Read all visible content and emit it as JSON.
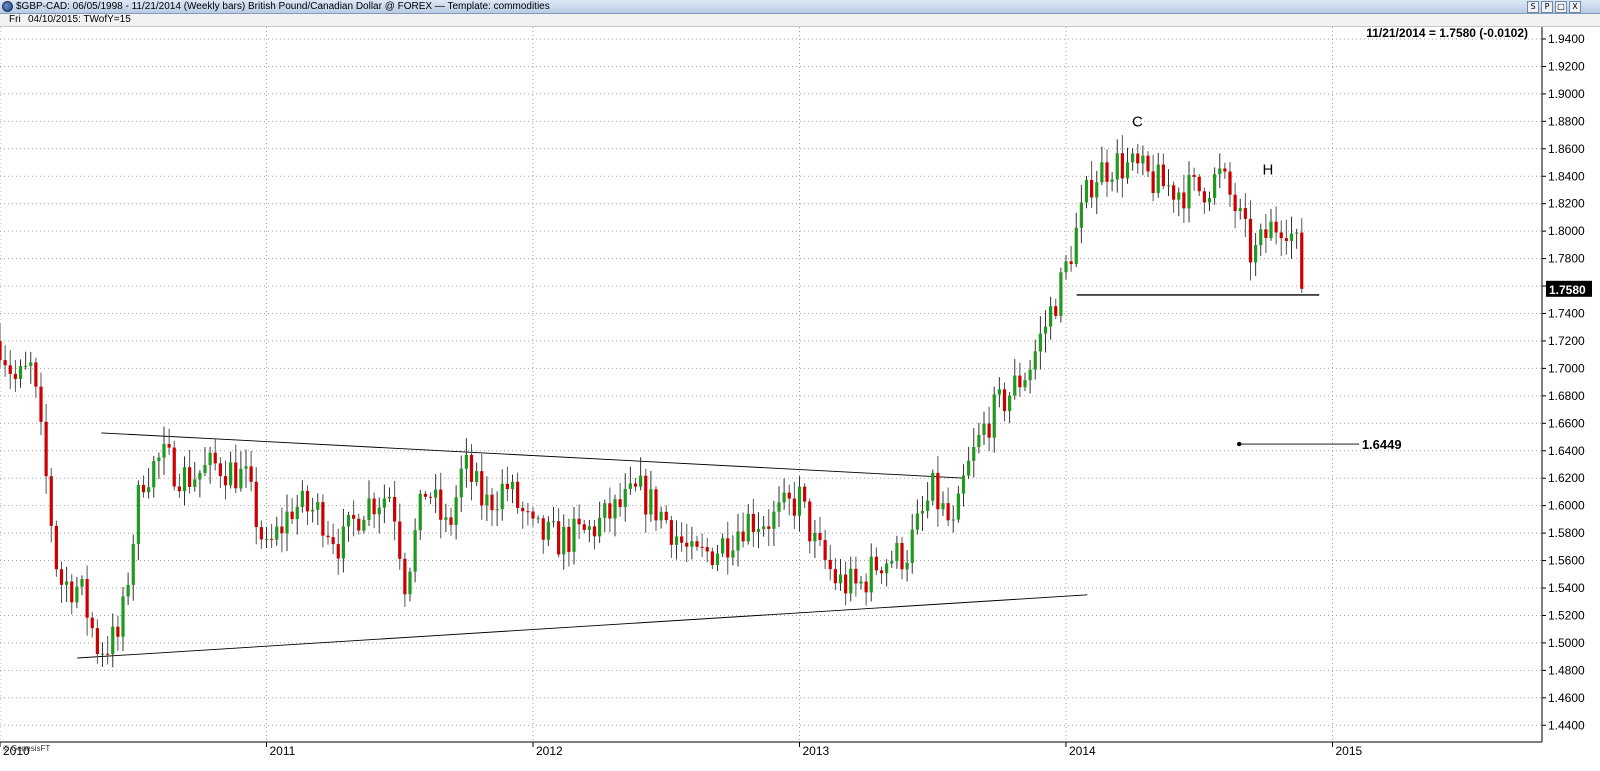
{
  "window": {
    "title": "$GBP-CAD:  06/05/1998 - 11/21/2014  (Weekly bars)   British Pound/Canadian Dollar @ FOREX  —  Template: commodities",
    "buttons": [
      "S",
      "P",
      "□",
      "X"
    ]
  },
  "info": {
    "day": "Fri",
    "date_line": "04/10/2015:   TWofY=15"
  },
  "footer": {
    "credit": "© GenesisFT"
  },
  "colors": {
    "up": "#1f9a1f",
    "down": "#cc0000",
    "wick": "#000000",
    "grid": "#a0a0a0",
    "text": "#000000"
  },
  "chart_data": {
    "type": "candlestick",
    "timeframe": "Weekly bars",
    "symbol": "$GBP-CAD",
    "readout": "11/21/2014 = 1.7580 (-0.0102)",
    "last_price": "1.7580",
    "ylim": [
      1.43,
      1.95
    ],
    "y_ticks": [
      "1.9400",
      "1.9200",
      "1.9000",
      "1.8800",
      "1.8600",
      "1.8400",
      "1.8200",
      "1.8000",
      "1.7800",
      "1.7600",
      "1.7400",
      "1.7200",
      "1.7000",
      "1.6800",
      "1.6600",
      "1.6400",
      "1.6200",
      "1.6000",
      "1.5800",
      "1.5600",
      "1.5400",
      "1.5200",
      "1.5000",
      "1.4800",
      "1.4600",
      "1.4400"
    ],
    "x_range": [
      2010.0,
      2015.8
    ],
    "x_ticks": [
      "2010",
      "2011",
      "2012",
      "2013",
      "2014",
      "2015"
    ],
    "trendlines": [
      {
        "name": "upper",
        "x1": 2010.38,
        "y1": 1.653,
        "x2": 2013.62,
        "y2": 1.62
      },
      {
        "name": "lower",
        "x1": 2010.29,
        "y1": 1.489,
        "x2": 2014.08,
        "y2": 1.535
      },
      {
        "name": "support",
        "x1": 2014.04,
        "y1": 1.7535,
        "x2": 2014.95,
        "y2": 1.7535
      },
      {
        "name": "target",
        "x1": 2014.65,
        "y1": 1.6449,
        "x2": 2015.1,
        "y2": 1.6449
      }
    ],
    "annotations": [
      {
        "text": "C",
        "x": 2014.27,
        "y": 1.88
      },
      {
        "text": "H",
        "x": 2014.76,
        "y": 1.845
      },
      {
        "text": "1.6449",
        "x": 2015.11,
        "y": 1.6449
      }
    ],
    "waypoints": [
      [
        2010.0,
        1.72
      ],
      [
        2010.06,
        1.69
      ],
      [
        2010.12,
        1.7
      ],
      [
        2010.16,
        1.64
      ],
      [
        2010.22,
        1.545
      ],
      [
        2010.3,
        1.54
      ],
      [
        2010.37,
        1.495
      ],
      [
        2010.45,
        1.505
      ],
      [
        2010.53,
        1.62
      ],
      [
        2010.61,
        1.635
      ],
      [
        2010.7,
        1.62
      ],
      [
        2010.82,
        1.63
      ],
      [
        2010.92,
        1.62
      ],
      [
        2011.0,
        1.565
      ],
      [
        2011.1,
        1.6
      ],
      [
        2011.2,
        1.595
      ],
      [
        2011.28,
        1.57
      ],
      [
        2011.36,
        1.6
      ],
      [
        2011.47,
        1.61
      ],
      [
        2011.52,
        1.545
      ],
      [
        2011.6,
        1.615
      ],
      [
        2011.68,
        1.58
      ],
      [
        2011.74,
        1.63
      ],
      [
        2011.82,
        1.6
      ],
      [
        2011.9,
        1.615
      ],
      [
        2012.0,
        1.58
      ],
      [
        2012.1,
        1.575
      ],
      [
        2012.2,
        1.58
      ],
      [
        2012.3,
        1.595
      ],
      [
        2012.4,
        1.61
      ],
      [
        2012.5,
        1.59
      ],
      [
        2012.6,
        1.56
      ],
      [
        2012.7,
        1.57
      ],
      [
        2012.8,
        1.59
      ],
      [
        2012.9,
        1.59
      ],
      [
        2013.0,
        1.605
      ],
      [
        2013.06,
        1.57
      ],
      [
        2013.14,
        1.545
      ],
      [
        2013.22,
        1.54
      ],
      [
        2013.3,
        1.56
      ],
      [
        2013.4,
        1.565
      ],
      [
        2013.5,
        1.61
      ],
      [
        2013.58,
        1.58
      ],
      [
        2013.62,
        1.62
      ],
      [
        2013.7,
        1.66
      ],
      [
        2013.78,
        1.68
      ],
      [
        2013.86,
        1.7
      ],
      [
        2013.92,
        1.73
      ],
      [
        2013.98,
        1.76
      ],
      [
        2014.04,
        1.8
      ],
      [
        2014.1,
        1.84
      ],
      [
        2014.18,
        1.85
      ],
      [
        2014.26,
        1.845
      ],
      [
        2014.34,
        1.835
      ],
      [
        2014.42,
        1.83
      ],
      [
        2014.5,
        1.83
      ],
      [
        2014.58,
        1.84
      ],
      [
        2014.64,
        1.815
      ],
      [
        2014.7,
        1.78
      ],
      [
        2014.76,
        1.8
      ],
      [
        2014.82,
        1.81
      ],
      [
        2014.87,
        1.785
      ],
      [
        2014.89,
        1.758
      ]
    ]
  }
}
